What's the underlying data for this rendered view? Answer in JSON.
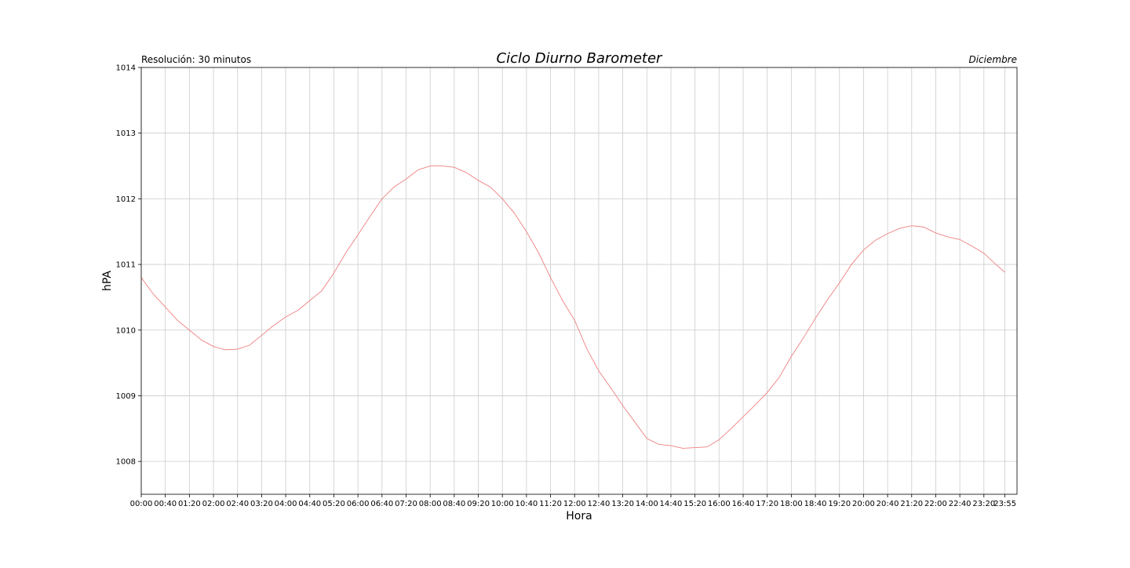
{
  "chart_data": {
    "type": "line",
    "title": "Ciclo Diurno Barometer",
    "left_subtitle": "Resolución: 30 minutos",
    "right_subtitle": "Diciembre",
    "xlabel": "Hora",
    "ylabel": "hPA",
    "ylim": [
      1007.5,
      1014
    ],
    "xlim_minutes": [
      0,
      1455
    ],
    "yticks": [
      1008,
      1009,
      1010,
      1011,
      1012,
      1013,
      1014
    ],
    "xticks": [
      "00:00",
      "00:40",
      "01:20",
      "02:00",
      "02:40",
      "03:20",
      "04:00",
      "04:40",
      "05:20",
      "06:00",
      "06:40",
      "07:20",
      "08:00",
      "08:40",
      "09:20",
      "10:00",
      "10:40",
      "11:20",
      "12:00",
      "12:40",
      "13:20",
      "14:00",
      "14:40",
      "15:20",
      "16:00",
      "16:40",
      "17:20",
      "18:00",
      "18:40",
      "19:20",
      "20:00",
      "20:40",
      "21:20",
      "22:00",
      "22:40",
      "23:20",
      "23:55"
    ],
    "grid": true,
    "line_color": "#f08080",
    "series": [
      {
        "x": [
          "00:00",
          "00:20",
          "00:40",
          "01:00",
          "01:20",
          "01:40",
          "02:00",
          "02:20",
          "02:40",
          "03:00",
          "03:20",
          "03:40",
          "04:00",
          "04:20",
          "04:40",
          "05:00",
          "05:20",
          "05:40",
          "06:00",
          "06:20",
          "06:40",
          "07:00",
          "07:20",
          "07:40",
          "08:00",
          "08:20",
          "08:40",
          "09:00",
          "09:20",
          "09:40",
          "10:00",
          "10:20",
          "10:40",
          "11:00",
          "11:20",
          "11:40",
          "12:00",
          "12:20",
          "12:40",
          "13:00",
          "13:20",
          "13:40",
          "14:00",
          "14:20",
          "14:40",
          "15:00",
          "15:20",
          "15:40",
          "16:00",
          "16:20",
          "16:40",
          "17:00",
          "17:20",
          "17:40",
          "18:00",
          "18:20",
          "18:40",
          "19:00",
          "19:20",
          "19:40",
          "20:00",
          "20:20",
          "20:40",
          "21:00",
          "21:20",
          "21:40",
          "22:00",
          "22:20",
          "22:40",
          "23:00",
          "23:20",
          "23:40",
          "23:55"
        ],
        "values": [
          1010.8,
          1010.55,
          1010.35,
          1010.15,
          1010.0,
          1009.85,
          1009.75,
          1009.7,
          1009.71,
          1009.77,
          1009.92,
          1010.07,
          1010.2,
          1010.3,
          1010.45,
          1010.6,
          1010.87,
          1011.18,
          1011.45,
          1011.73,
          1012.0,
          1012.18,
          1012.3,
          1012.44,
          1012.5,
          1012.5,
          1012.48,
          1012.4,
          1012.28,
          1012.18,
          1012.0,
          1011.78,
          1011.5,
          1011.18,
          1010.8,
          1010.45,
          1010.15,
          1009.72,
          1009.38,
          1009.12,
          1008.85,
          1008.6,
          1008.35,
          1008.26,
          1008.24,
          1008.2,
          1008.21,
          1008.22,
          1008.33,
          1008.5,
          1008.68,
          1008.86,
          1009.05,
          1009.28,
          1009.6,
          1009.88,
          1010.18,
          1010.46,
          1010.72,
          1011.0,
          1011.22,
          1011.37,
          1011.47,
          1011.55,
          1011.59,
          1011.57,
          1011.48,
          1011.42,
          1011.38,
          1011.28,
          1011.17,
          1011.0,
          1010.88
        ]
      }
    ]
  }
}
